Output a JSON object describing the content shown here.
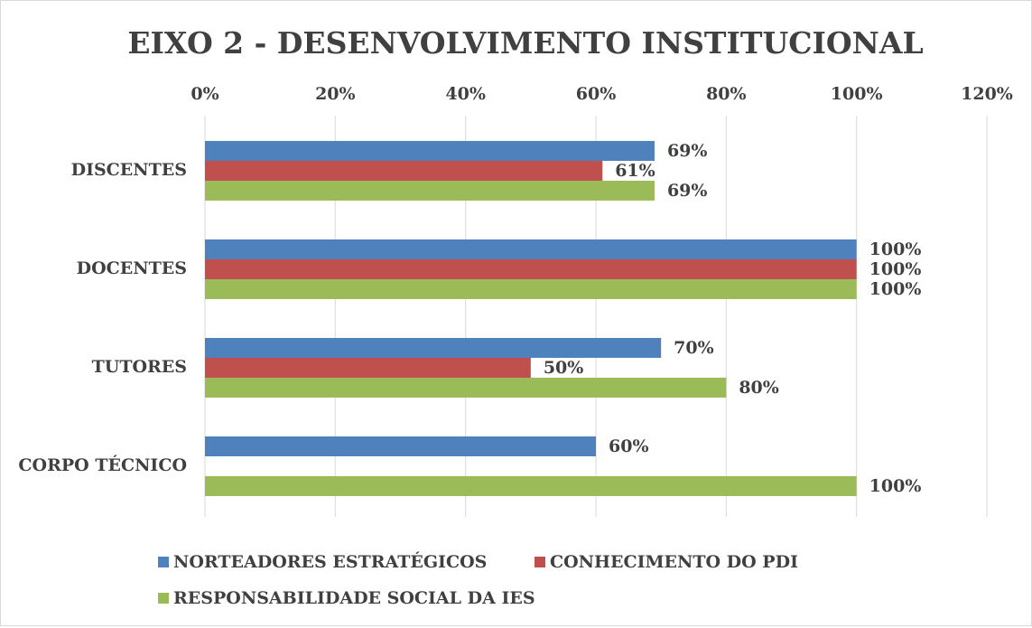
{
  "chart_data": {
    "type": "hbar",
    "title": "EIXO 2 - DESENVOLVIMENTO INSTITUCIONAL",
    "categories": [
      "DISCENTES",
      "DOCENTES",
      "TUTORES",
      "CORPO TÉCNICO"
    ],
    "series": [
      {
        "name": "NORTEADORES ESTRATÉGICOS",
        "color": "#4f81bd",
        "values": [
          69,
          100,
          70,
          60
        ],
        "value_labels": [
          "69%",
          "100%",
          "70%",
          "60%"
        ]
      },
      {
        "name": "CONHECIMENTO DO PDI",
        "color": "#c0504d",
        "values": [
          61,
          100,
          50,
          null
        ],
        "value_labels": [
          "61%",
          "100%",
          "50%",
          null
        ]
      },
      {
        "name": "RESPONSABILIDADE SOCIAL DA IES",
        "color": "#9bbb59",
        "values": [
          69,
          100,
          80,
          100
        ],
        "value_labels": [
          "69%",
          "100%",
          "80%",
          "100%"
        ]
      }
    ],
    "xlim": [
      0,
      120
    ],
    "xticks": [
      {
        "value": 0,
        "label": "0%"
      },
      {
        "value": 20,
        "label": "20%"
      },
      {
        "value": 40,
        "label": "40%"
      },
      {
        "value": 60,
        "label": "60%"
      },
      {
        "value": 80,
        "label": "80%"
      },
      {
        "value": 100,
        "label": "100%"
      },
      {
        "value": 120,
        "label": "120%"
      }
    ],
    "grid": true,
    "legend": "bottom"
  }
}
